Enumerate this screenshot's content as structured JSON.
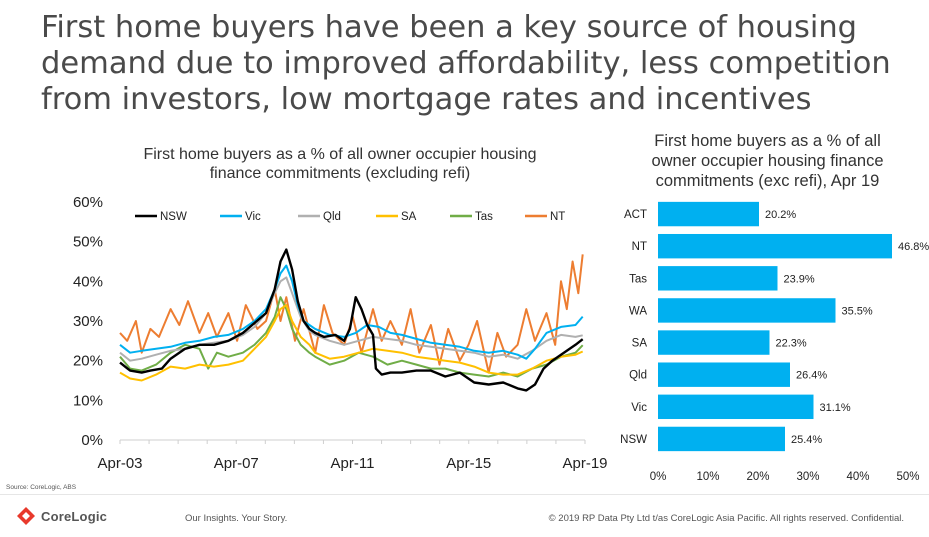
{
  "slide": {
    "title_lines": [
      "First home buyers have been a key source of housing",
      "demand due to improved affordability, less competition",
      "from investors, low mortgage rates and incentives"
    ]
  },
  "footer": {
    "source": "Source:  CoreLogic, ABS",
    "logo_text": "CoreLogic",
    "tagline": "Our Insights. Your Story.",
    "copyright": "© 2019 RP Data Pty Ltd t/as CoreLogic Asia Pacific. All rights reserved. Confidential."
  },
  "chart_data": [
    {
      "type": "line",
      "title_lines": [
        "First home buyers as a % of all owner occupier housing",
        "finance commitments (excluding refi)"
      ],
      "xlabel": "",
      "ylabel": "",
      "x_tick_labels": [
        "Apr-03",
        "Apr-07",
        "Apr-11",
        "Apr-15",
        "Apr-19"
      ],
      "y_tick_labels": [
        "0%",
        "10%",
        "20%",
        "30%",
        "40%",
        "50%",
        "60%"
      ],
      "ylim": [
        0,
        60
      ],
      "xlim": [
        2003.25,
        2019.33
      ],
      "x_unit": "year",
      "grid": false,
      "legend_position": "top",
      "series": [
        {
          "name": "NSW",
          "color": "#000000",
          "x": [
            2003.25,
            2003.6,
            2004.0,
            2004.3,
            2004.7,
            2005.0,
            2005.5,
            2006.0,
            2006.5,
            2007.0,
            2007.5,
            2007.9,
            2008.3,
            2008.6,
            2008.8,
            2009.0,
            2009.2,
            2009.4,
            2009.6,
            2009.8,
            2010.0,
            2010.3,
            2010.7,
            2011.0,
            2011.2,
            2011.4,
            2011.6,
            2011.8,
            2012.0,
            2012.1,
            2012.3,
            2012.6,
            2013.0,
            2013.5,
            2014.0,
            2014.5,
            2015.0,
            2015.5,
            2016.0,
            2016.5,
            2017.0,
            2017.3,
            2017.6,
            2017.9,
            2018.2,
            2018.5,
            2018.8,
            2019.0,
            2019.25
          ],
          "y": [
            19.5,
            17.5,
            17.0,
            17.5,
            18.0,
            20.5,
            23.0,
            24.0,
            24.0,
            25.0,
            27.0,
            29.5,
            32.0,
            38.0,
            45.0,
            48.0,
            43.0,
            35.0,
            30.0,
            28.0,
            27.0,
            26.0,
            26.5,
            25.0,
            28.0,
            36.0,
            33.0,
            29.0,
            26.5,
            18.0,
            16.5,
            17.0,
            17.0,
            17.5,
            17.5,
            16.0,
            17.0,
            14.5,
            14.0,
            14.5,
            13.0,
            12.5,
            14.0,
            18.0,
            20.0,
            21.5,
            23.0,
            24.0,
            25.4
          ]
        },
        {
          "name": "Vic",
          "color": "#00b0f0",
          "x": [
            2003.25,
            2003.6,
            2004.0,
            2004.5,
            2005.0,
            2005.5,
            2006.0,
            2006.5,
            2007.0,
            2007.5,
            2007.9,
            2008.3,
            2008.6,
            2008.8,
            2009.0,
            2009.2,
            2009.4,
            2009.6,
            2009.8,
            2010.0,
            2010.5,
            2011.0,
            2011.4,
            2011.8,
            2012.2,
            2012.6,
            2013.0,
            2013.5,
            2014.0,
            2014.5,
            2015.0,
            2015.5,
            2016.0,
            2016.5,
            2017.0,
            2017.3,
            2017.6,
            2018.0,
            2018.5,
            2019.0,
            2019.25
          ],
          "y": [
            24.0,
            22.0,
            22.5,
            23.0,
            23.5,
            24.5,
            25.0,
            26.0,
            26.5,
            28.0,
            30.0,
            33.0,
            38.0,
            42.0,
            44.0,
            40.0,
            34.0,
            30.0,
            29.0,
            28.0,
            26.5,
            26.0,
            27.0,
            29.0,
            28.5,
            27.0,
            26.5,
            25.5,
            24.5,
            24.0,
            23.5,
            22.5,
            22.0,
            22.5,
            21.5,
            20.5,
            23.0,
            27.0,
            28.5,
            29.0,
            31.1
          ]
        },
        {
          "name": "Qld",
          "color": "#b0b0b0",
          "x": [
            2003.25,
            2003.6,
            2004.0,
            2004.5,
            2005.0,
            2005.5,
            2006.0,
            2006.5,
            2007.0,
            2007.5,
            2007.9,
            2008.3,
            2008.6,
            2008.8,
            2009.0,
            2009.2,
            2009.5,
            2009.8,
            2010.0,
            2010.5,
            2011.0,
            2011.5,
            2012.0,
            2012.5,
            2013.0,
            2013.5,
            2014.0,
            2014.5,
            2015.0,
            2015.5,
            2016.0,
            2016.5,
            2017.0,
            2017.5,
            2018.0,
            2018.5,
            2019.0,
            2019.25
          ],
          "y": [
            22.0,
            20.0,
            20.5,
            21.5,
            22.5,
            23.0,
            24.0,
            24.5,
            25.0,
            26.5,
            28.5,
            32.0,
            37.0,
            40.0,
            41.0,
            37.0,
            31.0,
            27.5,
            26.5,
            25.0,
            24.0,
            25.0,
            26.0,
            25.5,
            25.0,
            24.0,
            23.5,
            23.0,
            22.5,
            22.0,
            21.0,
            21.5,
            20.5,
            22.5,
            25.0,
            26.5,
            26.0,
            26.4
          ]
        },
        {
          "name": "SA",
          "color": "#ffc000",
          "x": [
            2003.25,
            2003.6,
            2004.0,
            2004.5,
            2005.0,
            2005.5,
            2006.0,
            2006.5,
            2007.0,
            2007.5,
            2007.9,
            2008.3,
            2008.6,
            2008.8,
            2009.0,
            2009.2,
            2009.5,
            2009.8,
            2010.0,
            2010.5,
            2011.0,
            2011.5,
            2012.0,
            2012.5,
            2013.0,
            2013.5,
            2014.0,
            2014.5,
            2015.0,
            2015.5,
            2016.0,
            2016.5,
            2017.0,
            2017.5,
            2018.0,
            2018.5,
            2019.0,
            2019.25
          ],
          "y": [
            17.0,
            15.5,
            15.0,
            16.5,
            18.5,
            18.0,
            19.0,
            18.5,
            19.0,
            20.0,
            23.0,
            26.0,
            30.0,
            33.0,
            34.0,
            30.0,
            26.0,
            24.0,
            22.0,
            20.5,
            21.0,
            22.0,
            23.0,
            22.5,
            22.0,
            21.0,
            20.5,
            20.0,
            19.5,
            18.5,
            17.0,
            16.5,
            16.5,
            18.0,
            20.0,
            21.0,
            21.5,
            22.3
          ]
        },
        {
          "name": "Tas",
          "color": "#70ad47",
          "x": [
            2003.25,
            2003.6,
            2004.0,
            2004.5,
            2005.0,
            2005.5,
            2006.0,
            2006.3,
            2006.6,
            2007.0,
            2007.5,
            2007.9,
            2008.3,
            2008.6,
            2008.8,
            2009.0,
            2009.2,
            2009.5,
            2009.8,
            2010.0,
            2010.5,
            2011.0,
            2011.5,
            2012.0,
            2012.5,
            2013.0,
            2013.5,
            2014.0,
            2014.5,
            2015.0,
            2015.5,
            2016.0,
            2016.5,
            2017.0,
            2017.5,
            2018.0,
            2018.5,
            2019.0,
            2019.25
          ],
          "y": [
            21.0,
            18.0,
            17.5,
            19.0,
            22.0,
            24.0,
            23.0,
            18.0,
            22.0,
            21.0,
            22.0,
            24.0,
            27.0,
            31.0,
            36.0,
            33.0,
            28.0,
            24.0,
            22.0,
            21.0,
            19.0,
            20.0,
            22.0,
            21.0,
            19.0,
            20.0,
            19.0,
            18.0,
            18.0,
            17.0,
            16.5,
            16.0,
            17.0,
            16.0,
            18.0,
            19.0,
            21.0,
            22.0,
            23.9
          ]
        },
        {
          "name": "NT",
          "color": "#ed7d31",
          "x": [
            2003.25,
            2003.5,
            2003.8,
            2004.0,
            2004.3,
            2004.6,
            2005.0,
            2005.3,
            2005.6,
            2006.0,
            2006.3,
            2006.6,
            2007.0,
            2007.3,
            2007.6,
            2008.0,
            2008.3,
            2008.6,
            2008.8,
            2009.0,
            2009.3,
            2009.6,
            2010.0,
            2010.3,
            2010.6,
            2011.0,
            2011.3,
            2011.6,
            2012.0,
            2012.3,
            2012.6,
            2013.0,
            2013.3,
            2013.6,
            2014.0,
            2014.3,
            2014.6,
            2015.0,
            2015.3,
            2015.6,
            2016.0,
            2016.3,
            2016.6,
            2017.0,
            2017.3,
            2017.6,
            2018.0,
            2018.3,
            2018.5,
            2018.7,
            2018.9,
            2019.1,
            2019.25
          ],
          "y": [
            27.0,
            25.0,
            30.0,
            22.0,
            28.0,
            26.0,
            33.0,
            29.0,
            35.0,
            27.0,
            32.0,
            26.0,
            32.0,
            25.0,
            34.0,
            28.0,
            30.0,
            38.0,
            30.0,
            36.0,
            25.0,
            33.0,
            22.0,
            34.0,
            27.0,
            24.0,
            31.0,
            22.0,
            33.0,
            25.0,
            30.0,
            24.0,
            33.0,
            22.0,
            29.0,
            19.0,
            28.0,
            20.0,
            24.0,
            30.0,
            17.0,
            27.0,
            21.0,
            24.0,
            33.0,
            25.0,
            32.0,
            24.0,
            40.0,
            33.0,
            45.0,
            37.0,
            46.8
          ]
        }
      ]
    },
    {
      "type": "bar",
      "orientation": "horizontal",
      "title_lines": [
        "First home buyers as a % of all",
        "owner occupier housing finance",
        "commitments (exc refi), Apr 19"
      ],
      "categories": [
        "ACT",
        "NT",
        "Tas",
        "WA",
        "SA",
        "Qld",
        "Vic",
        "NSW"
      ],
      "values": [
        20.2,
        46.8,
        23.9,
        35.5,
        22.3,
        26.4,
        31.1,
        25.4
      ],
      "value_labels": [
        "20.2%",
        "46.8%",
        "23.9%",
        "35.5%",
        "22.3%",
        "26.4%",
        "31.1%",
        "25.4%"
      ],
      "x_tick_labels": [
        "0%",
        "10%",
        "20%",
        "30%",
        "40%",
        "50%"
      ],
      "xlim": [
        0,
        50
      ],
      "xlabel": "",
      "ylabel": "",
      "grid": false,
      "bar_color": "#00b0f0"
    }
  ]
}
